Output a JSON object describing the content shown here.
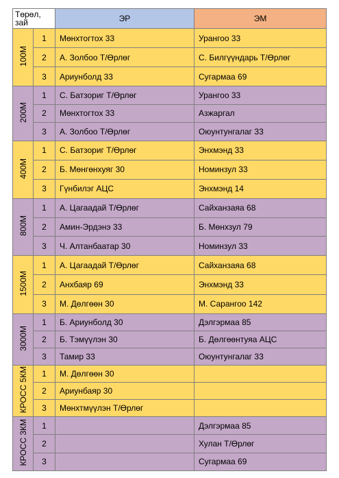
{
  "table": {
    "header": [
      "Төрөл, зай",
      "ЭР",
      "ЭМ"
    ],
    "groups": [
      {
        "event": "100М",
        "rows": [
          [
            "1",
            "Мөнхтогтох 33",
            "Урангоо 33"
          ],
          [
            "2",
            "А. Золбоо Т/Өрлөг",
            "С. Билгүүндарь Т/Өрлөг"
          ],
          [
            "3",
            "Ариунболд 33",
            "Сугармаа 69"
          ]
        ]
      },
      {
        "event": "200М",
        "rows": [
          [
            "1",
            "С. Батзориг Т/Өрлөг",
            "Урангоо 33"
          ],
          [
            "2",
            "Мөнхтогтох 33",
            "Азжаргал"
          ],
          [
            "3",
            "А. Золбоо Т/Өрлөг",
            "Оюунтунгалаг 33"
          ]
        ]
      },
      {
        "event": "400М",
        "rows": [
          [
            "1",
            "С. Батзориг Т/Өрлөг",
            "Энхмэнд 33"
          ],
          [
            "2",
            "Б. Мөнгөнхуяг 30",
            "Номинзул 33"
          ],
          [
            "3",
            "Гүнбилэг АЦС",
            "Энхмэнд 14"
          ]
        ]
      },
      {
        "event": "800М",
        "rows": [
          [
            "1",
            "А. Цагаадай Т/Өрлөг",
            "Сайханзаяа 68"
          ],
          [
            "2",
            "Амин-Эрдэнэ 33",
            "Б. Мөнхзул 79"
          ],
          [
            "3",
            "Ч. Алтанбаатар 30",
            "Номинзул 33"
          ]
        ]
      },
      {
        "event": "1500М",
        "rows": [
          [
            "1",
            "А. Цагаадай Т/Өрлөг",
            "Сайханзаяа 68"
          ],
          [
            "2",
            "Анхбаяр 69",
            "Энхмэнд 33"
          ],
          [
            "3",
            "М. Дөлгөөн 30",
            "М. Сарангоо 142"
          ]
        ]
      },
      {
        "event": "3000М",
        "rows": [
          [
            "1",
            "Б. Ариунболд 30",
            "Дэлгэрмаа 85"
          ],
          [
            "2",
            "Б. Тэмүүлэн 30",
            "Б. Дөлгөөнтуяа АЦС"
          ],
          [
            "3",
            "Тамир 33",
            "Оюунтунгалаг 33"
          ]
        ]
      },
      {
        "event": "КРОСС 5КМ",
        "rows": [
          [
            "1",
            "М. Дөлгөөн 30",
            null
          ],
          [
            "2",
            "Ариунбаяр 30",
            null
          ],
          [
            "3",
            "Мөнхтмүүлэн Т/Өрлөг",
            null
          ]
        ]
      },
      {
        "event": "КРОСС 3КМ",
        "rows": [
          [
            "1",
            null,
            "Дэлгэрмаа 85"
          ],
          [
            "2",
            null,
            "Хулан Т/Өрлөг"
          ],
          [
            "3",
            null,
            "Сугармаа 69"
          ]
        ]
      }
    ]
  }
}
